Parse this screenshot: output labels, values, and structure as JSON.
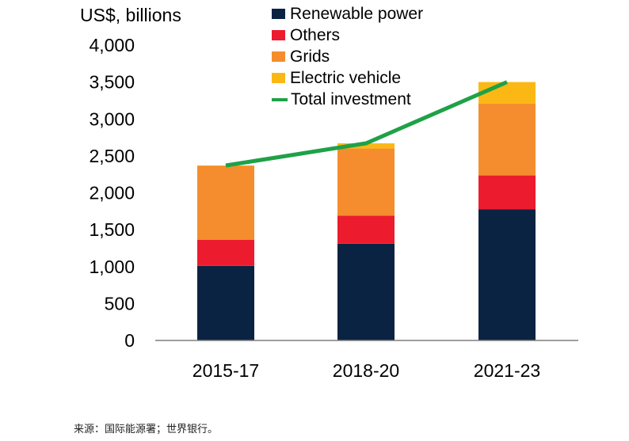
{
  "chart_data": {
    "type": "bar",
    "stacked": true,
    "ylabel": "US$, billions",
    "ylim": [
      0,
      4000
    ],
    "yticks": [
      0,
      500,
      1000,
      1500,
      2000,
      2500,
      3000,
      3500,
      4000
    ],
    "ytick_labels": [
      "0",
      "500",
      "1,000",
      "1,500",
      "2,000",
      "2,500",
      "3,000",
      "3,500",
      "4,000"
    ],
    "categories": [
      "2015-17",
      "2018-20",
      "2021-23"
    ],
    "series": [
      {
        "name": "Renewable power",
        "color": "#0b2343",
        "values": [
          1010,
          1310,
          1775
        ]
      },
      {
        "name": "Others",
        "color": "#ec1c2e",
        "values": [
          355,
          380,
          460
        ]
      },
      {
        "name": "Grids",
        "color": "#f58d2e",
        "values": [
          1000,
          910,
          975
        ]
      },
      {
        "name": "Electric vehicle",
        "color": "#fbb815",
        "values": [
          5,
          70,
          290
        ]
      }
    ],
    "line_series": {
      "name": "Total investment",
      "color": "#1fa147",
      "values": [
        2370,
        2670,
        3500
      ]
    },
    "legend_position": "top-right"
  },
  "source_note": "来源：国际能源署；世界银行。"
}
